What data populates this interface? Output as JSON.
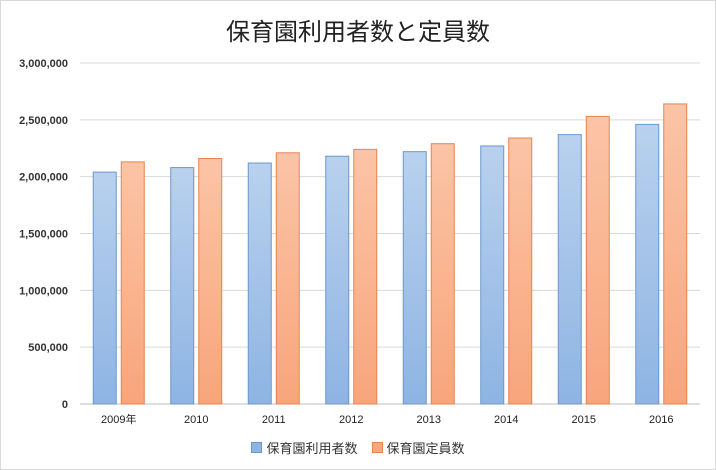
{
  "chart_data": {
    "type": "bar",
    "title": "保育園利用者数と定員数",
    "categories": [
      "2009年",
      "2010",
      "2011",
      "2012",
      "2013",
      "2014",
      "2015",
      "2016"
    ],
    "series": [
      {
        "name": "保育園利用者数",
        "values": [
          2040000,
          2080000,
          2120000,
          2180000,
          2220000,
          2270000,
          2370000,
          2460000
        ],
        "color": "#8db4e2"
      },
      {
        "name": "保育園定員数",
        "values": [
          2130000,
          2160000,
          2210000,
          2240000,
          2290000,
          2340000,
          2530000,
          2640000
        ],
        "color": "#f8a77e"
      }
    ],
    "ylim": [
      0,
      3000000
    ],
    "yticks": [
      0,
      500000,
      1000000,
      1500000,
      2000000,
      2500000,
      3000000
    ],
    "ytick_labels": [
      "0",
      "500,000",
      "1,000,000",
      "1,500,000",
      "2,000,000",
      "2,500,000",
      "3,000,000"
    ],
    "xlabel": "",
    "ylabel": "",
    "grid": true,
    "legend_position": "bottom"
  }
}
